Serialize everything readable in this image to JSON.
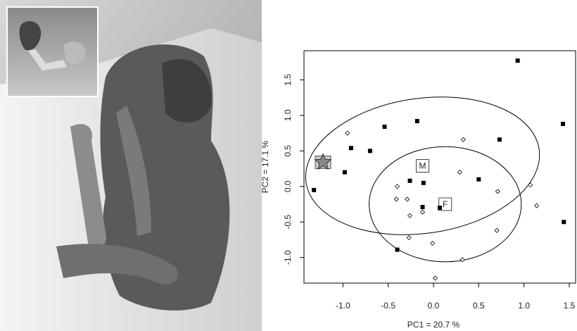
{
  "chart_data": {
    "type": "scatter",
    "xlabel": "PC1 = 20.7 %",
    "ylabel": "PC2 = 17.1 %",
    "xlim": [
      -1.43,
      1.57
    ],
    "ylim": [
      -1.36,
      1.91
    ],
    "xticks": [
      {
        "value": -1,
        "label": "-1.0"
      },
      -0.5,
      {
        "value": 0,
        "label": "0.0"
      },
      0.5,
      {
        "value": 1,
        "label": "1.0"
      },
      1.5
    ],
    "yticks": [
      {
        "value": -1,
        "label": "-1.0"
      },
      -0.5,
      {
        "value": 0,
        "label": "0.0"
      },
      0.5,
      {
        "value": 1,
        "label": "1.0"
      },
      1.5
    ],
    "series": [
      {
        "marker": "square",
        "color": "#000000",
        "x": [
          0.93,
          1.43,
          1.44,
          -0.54,
          -0.18,
          -0.91,
          -0.7,
          0.73,
          -0.98,
          -1.32,
          -0.26,
          -0.11,
          0.5,
          -0.12,
          0.07,
          -0.4
        ],
        "values": [
          1.77,
          0.88,
          -0.5,
          0.84,
          0.92,
          0.54,
          0.5,
          0.66,
          0.2,
          -0.05,
          0.08,
          0.05,
          0.1,
          -0.29,
          -0.3,
          -0.89
        ]
      },
      {
        "marker": "diamond",
        "color": "#000000",
        "x": [
          -0.95,
          0.33,
          0.29,
          -0.4,
          -0.41,
          -0.29,
          0.71,
          1.07,
          1.14,
          -0.26,
          -0.12,
          0.7,
          -0.27,
          -0.01,
          0.32,
          0.02
        ],
        "values": [
          0.75,
          0.66,
          0.2,
          0.0,
          -0.18,
          -0.18,
          -0.07,
          0.02,
          -0.27,
          -0.41,
          -0.36,
          -0.62,
          -0.72,
          -0.8,
          -1.03,
          -1.29
        ]
      },
      {
        "marker": "star",
        "color": "#888888",
        "x": [
          -1.22
        ],
        "values": [
          0.34
        ]
      }
    ],
    "ellipses": [
      {
        "label": "M",
        "x": -0.12,
        "y": 0.29,
        "rx": 1.3,
        "ry": 0.95,
        "angle": -8
      },
      {
        "label": "F",
        "x": 0.13,
        "y": -0.25,
        "rx": 0.84,
        "ry": 0.81,
        "angle": 0
      }
    ]
  }
}
